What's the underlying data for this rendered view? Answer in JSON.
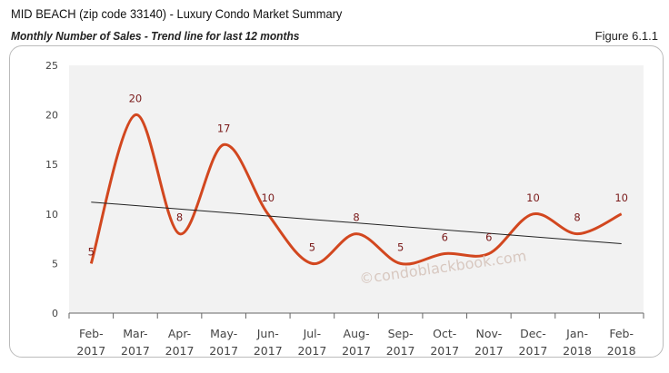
{
  "header": {
    "title": "MID BEACH (zip code 33140) - Luxury Condo Market Summary",
    "subtitle": "Monthly Number of Sales - Trend line for last 12 months",
    "figure": "Figure 6.1.1"
  },
  "watermark": "©condoblackbook.com",
  "chart_data": {
    "type": "line",
    "categories": [
      "Feb-2017",
      "Mar-2017",
      "Apr-2017",
      "May-2017",
      "Jun-2017",
      "Jul-2017",
      "Aug-2017",
      "Sep-2017",
      "Oct-2017",
      "Nov-2017",
      "Dec-2017",
      "Jan-2018",
      "Feb-2018"
    ],
    "category_lines": [
      [
        "Feb-",
        "2017"
      ],
      [
        "Mar-",
        "2017"
      ],
      [
        "Apr-",
        "2017"
      ],
      [
        "May-",
        "2017"
      ],
      [
        "Jun-",
        "2017"
      ],
      [
        "Jul-",
        "2017"
      ],
      [
        "Aug-",
        "2017"
      ],
      [
        "Sep-",
        "2017"
      ],
      [
        "Oct-",
        "2017"
      ],
      [
        "Nov-",
        "2017"
      ],
      [
        "Dec-",
        "2017"
      ],
      [
        "Jan-",
        "2018"
      ],
      [
        "Feb-",
        "2018"
      ]
    ],
    "values": [
      5,
      20,
      8,
      17,
      10,
      5,
      8,
      5,
      6,
      6,
      10,
      8,
      10
    ],
    "trend": {
      "start": 11.2,
      "end": 7.0,
      "color": "#222222"
    },
    "ylim": [
      0,
      25
    ],
    "yticks": [
      0,
      5,
      10,
      15,
      20,
      25
    ],
    "line_color": "#d2471f",
    "label_color": "#7a1a1a",
    "plot_bg": "#f2f2f2",
    "grid": false,
    "smooth": true
  }
}
